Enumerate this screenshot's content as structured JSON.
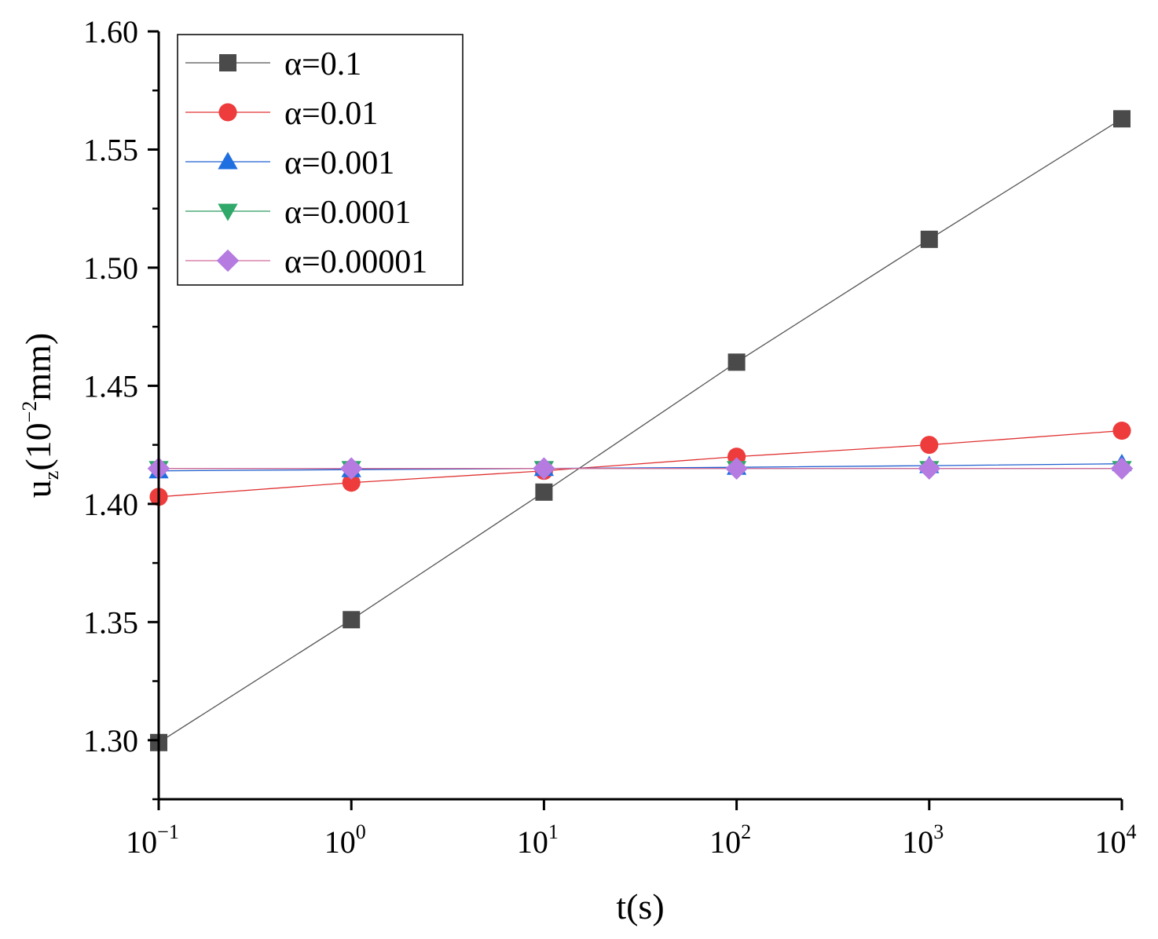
{
  "chart_data": {
    "type": "line",
    "title": "",
    "xlabel": "t(s)",
    "ylabel_main": "u",
    "ylabel_sub": "z",
    "ylabel_paren_open": "(10",
    "ylabel_exp": "−2",
    "ylabel_unit": "mm)",
    "xscale": "log",
    "xlim_exp": [
      -1,
      4
    ],
    "ylim": [
      1.275,
      1.6
    ],
    "x": [
      0.1,
      1,
      10,
      100,
      1000,
      10000
    ],
    "xtick_base": "10",
    "xtick_exps": [
      "−1",
      "0",
      "1",
      "2",
      "3",
      "4"
    ],
    "xtick_values": [
      0.1,
      1,
      10,
      100,
      1000,
      10000
    ],
    "yticks": [
      1.3,
      1.35,
      1.4,
      1.45,
      1.5,
      1.55,
      1.6
    ],
    "ytick_labels": [
      "1.30",
      "1.35",
      "1.40",
      "1.45",
      "1.50",
      "1.55",
      "1.60"
    ],
    "legend_position": "top-left",
    "series": [
      {
        "name": "α=0.1",
        "marker": "square",
        "color": "#4a4a4a",
        "line_color": "#555555",
        "values": [
          1.299,
          1.351,
          1.405,
          1.46,
          1.512,
          1.563
        ]
      },
      {
        "name": "α=0.01",
        "marker": "circle",
        "color": "#ee3b3b",
        "line_color": "#e03030",
        "values": [
          1.403,
          1.409,
          1.414,
          1.42,
          1.425,
          1.431
        ]
      },
      {
        "name": "α=0.001",
        "marker": "triangle-up",
        "color": "#1f6fe0",
        "line_color": "#1f5fd0",
        "values": [
          1.414,
          1.4145,
          1.415,
          1.4155,
          1.4162,
          1.417
        ]
      },
      {
        "name": "α=0.0001",
        "marker": "triangle-down",
        "color": "#2fa86a",
        "line_color": "#2a9a60",
        "values": [
          1.415,
          1.415,
          1.415,
          1.415,
          1.415,
          1.415
        ]
      },
      {
        "name": "α=0.00001",
        "marker": "diamond",
        "color": "#b57be0",
        "line_color": "#d26a9a",
        "values": [
          1.415,
          1.415,
          1.415,
          1.415,
          1.415,
          1.415
        ]
      }
    ]
  }
}
